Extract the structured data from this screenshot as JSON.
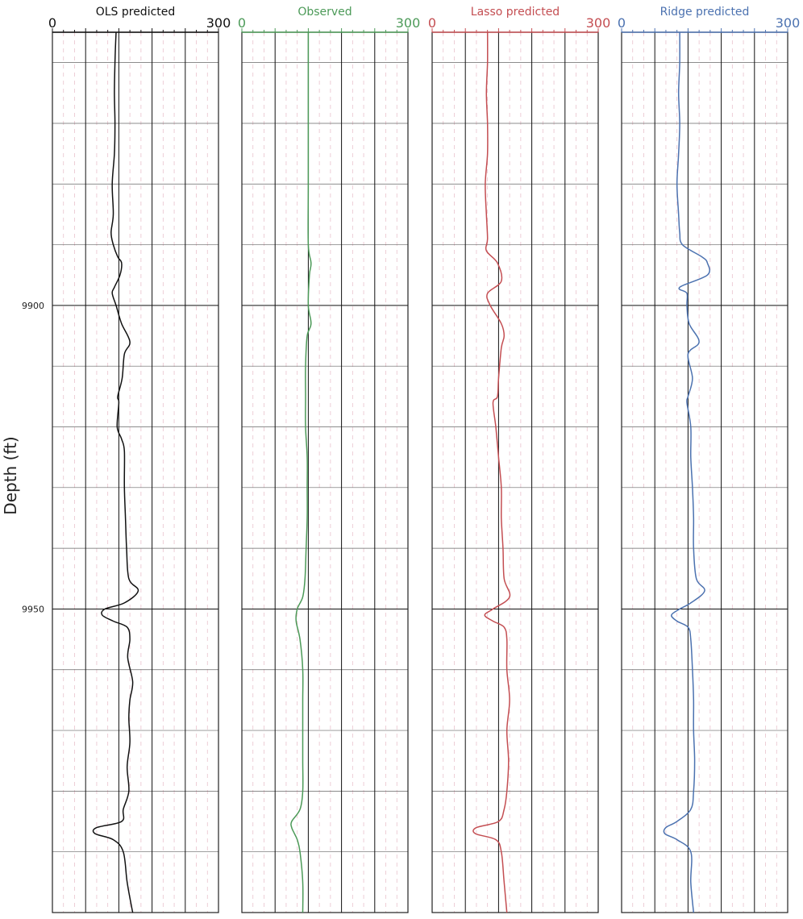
{
  "chart_data": {
    "type": "line",
    "ylabel": "Depth (ft)",
    "ylim": [
      9855,
      10000
    ],
    "y_inverted": true,
    "y_ticks": [
      9900,
      9950
    ],
    "y_tick_labels": [
      "9900",
      "9950"
    ],
    "y_minor_gridlines": [
      9860,
      9870,
      9880,
      9890,
      9910,
      9920,
      9930,
      9940,
      9960,
      9970,
      9980,
      9990
    ],
    "xlim": [
      0,
      300
    ],
    "x_major_gridlines": [
      60,
      120,
      180,
      240
    ],
    "x_minor_gridlines": "dashed light pink every 20 units",
    "grid": true,
    "legend": "none",
    "tracks": [
      {
        "title": "OLS predicted",
        "color": "#111111",
        "x_tick_labels": [
          "0",
          "300"
        ],
        "depth": [
          9855,
          9860,
          9865,
          9870,
          9875,
          9880,
          9885,
          9888,
          9890,
          9892,
          9893,
          9895,
          9897,
          9898,
          9900,
          9903,
          9906,
          9908,
          9912,
          9915,
          9916,
          9920,
          9922,
          9924,
          9930,
          9935,
          9940,
          9945,
          9947,
          9949,
          9950,
          9951,
          9952,
          9953,
          9955,
          9958,
          9962,
          9965,
          9968,
          9972,
          9976,
          9980,
          9983,
          9985,
          9986,
          9987,
          9988,
          9990,
          9995,
          10000
        ],
        "values": [
          115,
          113,
          112,
          113,
          112,
          108,
          110,
          106,
          110,
          118,
          125,
          122,
          112,
          108,
          115,
          125,
          140,
          130,
          126,
          118,
          120,
          117,
          125,
          130,
          130,
          132,
          134,
          138,
          155,
          130,
          95,
          90,
          110,
          135,
          140,
          136,
          145,
          140,
          138,
          140,
          135,
          138,
          128,
          125,
          80,
          77,
          110,
          128,
          135,
          145
        ]
      },
      {
        "title": "Observed",
        "color": "#4c9a58",
        "x_tick_labels": [
          "0",
          "300"
        ],
        "depth": [
          9855,
          9860,
          9870,
          9880,
          9890,
          9893,
          9895,
          9900,
          9903,
          9905,
          9910,
          9915,
          9920,
          9925,
          9930,
          9935,
          9940,
          9945,
          9948,
          9950,
          9952,
          9955,
          9960,
          9965,
          9970,
          9975,
          9980,
          9983,
          9985,
          9986,
          9987,
          9988,
          9990,
          9995,
          10000
        ],
        "values": [
          120,
          120,
          120,
          120,
          120,
          125,
          122,
          120,
          125,
          118,
          115,
          115,
          115,
          118,
          118,
          118,
          116,
          114,
          110,
          100,
          98,
          105,
          110,
          110,
          110,
          110,
          110,
          105,
          90,
          90,
          95,
          100,
          105,
          110,
          110
        ]
      },
      {
        "title": "Lasso predicted",
        "color": "#c44e52",
        "x_tick_labels": [
          "0",
          "300"
        ],
        "depth": [
          9855,
          9860,
          9865,
          9870,
          9875,
          9880,
          9885,
          9889,
          9891,
          9893,
          9896,
          9898,
          9900,
          9903,
          9905,
          9907,
          9912,
          9915,
          9916,
          9920,
          9925,
          9930,
          9935,
          9940,
          9945,
          9948,
          9950,
          9951,
          9952,
          9953,
          9955,
          9960,
          9965,
          9970,
          9975,
          9980,
          9983,
          9985,
          9986,
          9987,
          9988,
          9990,
          9995,
          10000
        ],
        "values": [
          100,
          100,
          98,
          100,
          100,
          96,
          98,
          100,
          98,
          118,
          125,
          100,
          105,
          125,
          130,
          125,
          120,
          118,
          110,
          115,
          120,
          125,
          125,
          128,
          130,
          140,
          110,
          95,
          110,
          130,
          135,
          135,
          140,
          135,
          138,
          135,
          130,
          120,
          80,
          78,
          115,
          125,
          130,
          135
        ]
      },
      {
        "title": "Ridge predicted",
        "color": "#4c72b0",
        "x_tick_labels": [
          "0",
          "300"
        ],
        "depth": [
          9855,
          9860,
          9865,
          9870,
          9875,
          9880,
          9885,
          9888,
          9890,
          9892,
          9893,
          9895,
          9897,
          9898,
          9900,
          9903,
          9906,
          9908,
          9912,
          9915,
          9916,
          9920,
          9925,
          9930,
          9935,
          9940,
          9945,
          9947,
          9949,
          9950,
          9951,
          9952,
          9953,
          9955,
          9960,
          9965,
          9970,
          9975,
          9980,
          9983,
          9985,
          9986,
          9987,
          9988,
          9990,
          9995,
          10000
        ],
        "values": [
          105,
          105,
          103,
          105,
          103,
          100,
          103,
          105,
          110,
          145,
          155,
          155,
          105,
          118,
          118,
          122,
          140,
          120,
          128,
          120,
          118,
          125,
          125,
          128,
          130,
          130,
          135,
          150,
          125,
          105,
          90,
          100,
          120,
          125,
          128,
          130,
          130,
          132,
          130,
          125,
          100,
          80,
          78,
          100,
          125,
          125,
          130
        ]
      }
    ]
  }
}
